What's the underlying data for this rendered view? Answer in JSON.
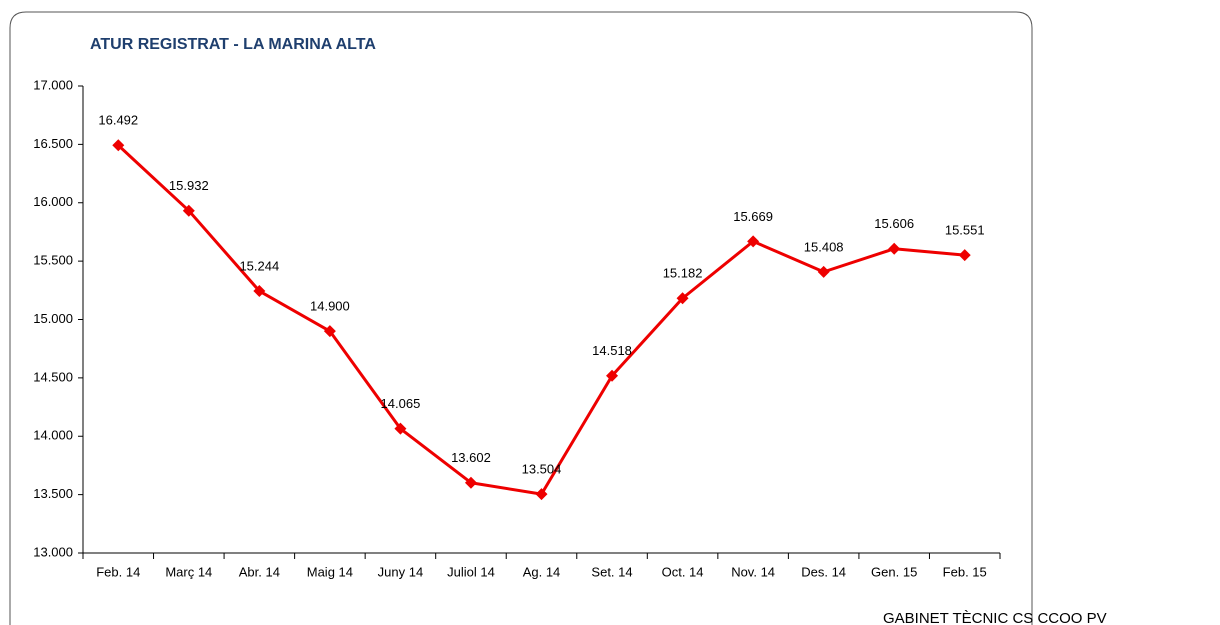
{
  "chart_data": {
    "type": "line",
    "title": "ATUR REGISTRAT - LA MARINA ALTA",
    "footer": "GABINET TÈCNIC CS CCOO PV",
    "categories": [
      "Feb. 14",
      "Març 14",
      "Abr. 14",
      "Maig 14",
      "Juny 14",
      "Juliol 14",
      "Ag. 14",
      "Set. 14",
      "Oct. 14",
      "Nov. 14",
      "Des. 14",
      "Gen. 15",
      "Feb. 15"
    ],
    "series": [
      {
        "name": "Atur registrat",
        "color": "#ee0000",
        "values": [
          16492,
          15932,
          15244,
          14900,
          14065,
          13602,
          13504,
          14518,
          15182,
          15669,
          15408,
          15606,
          15551
        ],
        "value_labels": [
          "16.492",
          "15.932",
          "15.244",
          "14.900",
          "14.065",
          "13.602",
          "13.504",
          "14.518",
          "15.182",
          "15.669",
          "15.408",
          "15.606",
          "15.551"
        ]
      }
    ],
    "ylim": [
      13000,
      17000
    ],
    "yticks": [
      {
        "value": 13000,
        "label": "13.000"
      },
      {
        "value": 13500,
        "label": "13.500"
      },
      {
        "value": 14000,
        "label": "14.000"
      },
      {
        "value": 14500,
        "label": "14.500"
      },
      {
        "value": 15000,
        "label": "15.000"
      },
      {
        "value": 15500,
        "label": "15.500"
      },
      {
        "value": 16000,
        "label": "16.000"
      },
      {
        "value": 16500,
        "label": "16.500"
      },
      {
        "value": 17000,
        "label": "17.000"
      }
    ],
    "grid": false
  }
}
